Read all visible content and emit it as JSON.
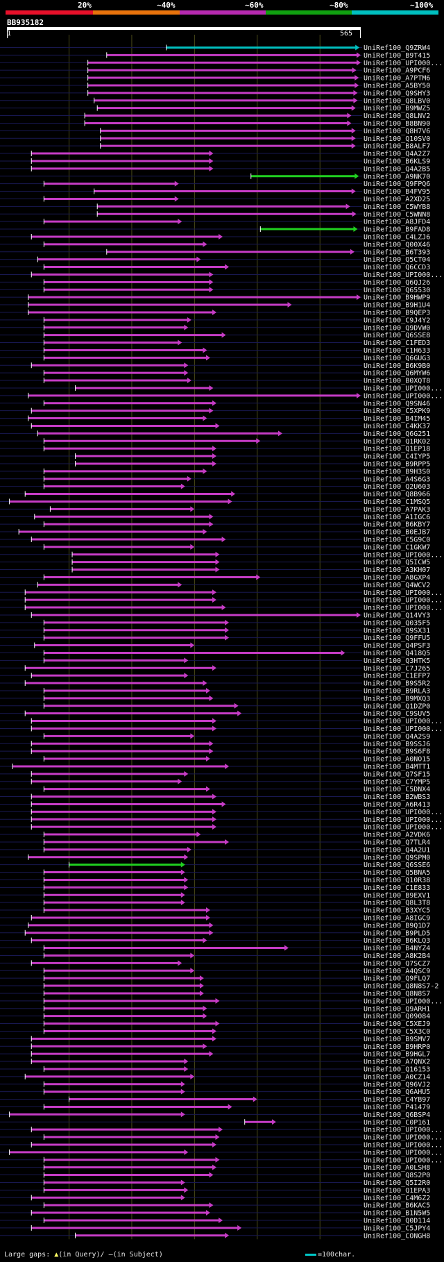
{
  "header": {
    "percent_labels": [
      "20%",
      "~40%",
      "~60%",
      "~80%",
      "~100%"
    ],
    "identity_colors": [
      "#e8102a",
      "#e8730c",
      "#b62ab0",
      "#10a010",
      "#00c0c0"
    ]
  },
  "query": {
    "name": "BB935182",
    "start": "1",
    "end": "565",
    "length": 565
  },
  "colors": {
    "purple": "#c63cc6",
    "green": "#20d020",
    "cyan": "#00c0c0",
    "white": "#ffffff",
    "gap": "#ffff66",
    "grid": "#4a4a1a",
    "row_rule": "#181850"
  },
  "hits": [
    {
      "name": "UniRef100_Q9ZRW4",
      "start": 255,
      "end": 563,
      "color": "cyan"
    },
    {
      "name": "UniRef100_B9T415",
      "start": 160,
      "end": 565,
      "color": "purple"
    },
    {
      "name": "UniRef100_UPI000...",
      "start": 130,
      "end": 565,
      "color": "purple"
    },
    {
      "name": "UniRef100_A9PCF6",
      "start": 130,
      "end": 558,
      "color": "purple"
    },
    {
      "name": "UniRef100_A7PTM6",
      "start": 130,
      "end": 562,
      "color": "purple"
    },
    {
      "name": "UniRef100_A5BY50",
      "start": 130,
      "end": 562,
      "color": "purple"
    },
    {
      "name": "UniRef100_Q9SHY3",
      "start": 130,
      "end": 560,
      "color": "purple"
    },
    {
      "name": "UniRef100_Q8LBV0",
      "start": 140,
      "end": 560,
      "color": "purple"
    },
    {
      "name": "UniRef100_B9MWZ5",
      "start": 145,
      "end": 557,
      "color": "purple"
    },
    {
      "name": "UniRef100_Q8LNV2",
      "start": 125,
      "end": 550,
      "color": "purple"
    },
    {
      "name": "UniRef100_B8BN90",
      "start": 125,
      "end": 550,
      "color": "purple"
    },
    {
      "name": "UniRef100_Q8H7V6",
      "start": 150,
      "end": 557,
      "color": "purple"
    },
    {
      "name": "UniRef100_Q10SV0",
      "start": 150,
      "end": 557,
      "color": "purple"
    },
    {
      "name": "UniRef100_B8ALF7",
      "start": 150,
      "end": 557,
      "color": "purple"
    },
    {
      "name": "UniRef100_Q4A2Z7",
      "start": 40,
      "end": 330,
      "color": "purple"
    },
    {
      "name": "UniRef100_B6KLS9",
      "start": 40,
      "end": 330,
      "color": "purple"
    },
    {
      "name": "UniRef100_Q4A2B5",
      "start": 40,
      "end": 330,
      "color": "purple"
    },
    {
      "name": "UniRef100_A9NK70",
      "start": 390,
      "end": 562,
      "color": "green"
    },
    {
      "name": "UniRef100_Q9FPQ6",
      "start": 60,
      "end": 275,
      "color": "purple"
    },
    {
      "name": "UniRef100_B4FV95",
      "start": 140,
      "end": 557,
      "color": "purple"
    },
    {
      "name": "UniRef100_A2XD25",
      "start": 60,
      "end": 275,
      "color": "purple"
    },
    {
      "name": "UniRef100_C5WYB8",
      "start": 145,
      "end": 548,
      "color": "purple"
    },
    {
      "name": "UniRef100_C5WNN8",
      "start": 145,
      "end": 558,
      "color": "purple"
    },
    {
      "name": "UniRef100_A8JFD4",
      "start": 60,
      "end": 280,
      "color": "purple"
    },
    {
      "name": "UniRef100_B9FAD8",
      "start": 405,
      "end": 560,
      "color": "green"
    },
    {
      "name": "UniRef100_C4LZJ6",
      "start": 40,
      "end": 345,
      "color": "purple"
    },
    {
      "name": "UniRef100_Q00X46",
      "start": 60,
      "end": 320,
      "color": "purple"
    },
    {
      "name": "UniRef100_B6T393",
      "start": 160,
      "end": 555,
      "color": "purple"
    },
    {
      "name": "UniRef100_Q5CT04",
      "start": 50,
      "end": 310,
      "color": "purple"
    },
    {
      "name": "UniRef100_Q6CCD3",
      "start": 60,
      "end": 355,
      "color": "purple"
    },
    {
      "name": "UniRef100_UPI000...",
      "start": 40,
      "end": 330,
      "color": "purple"
    },
    {
      "name": "UniRef100_Q6QJ26",
      "start": 60,
      "end": 330,
      "color": "purple"
    },
    {
      "name": "UniRef100_Q65530",
      "start": 60,
      "end": 330,
      "color": "purple"
    },
    {
      "name": "UniRef100_B9HWP9",
      "start": 35,
      "end": 565,
      "color": "purple"
    },
    {
      "name": "UniRef100_B9H1U4",
      "start": 35,
      "end": 455,
      "color": "purple"
    },
    {
      "name": "UniRef100_B9QEP3",
      "start": 35,
      "end": 335,
      "color": "purple"
    },
    {
      "name": "UniRef100_C9J4Y2",
      "start": 60,
      "end": 295,
      "color": "purple"
    },
    {
      "name": "UniRef100_Q9DVW0",
      "start": 60,
      "end": 290,
      "color": "purple"
    },
    {
      "name": "UniRef100_Q6SSE8",
      "start": 60,
      "end": 350,
      "color": "purple"
    },
    {
      "name": "UniRef100_C1FED3",
      "start": 60,
      "end": 280,
      "color": "purple"
    },
    {
      "name": "UniRef100_C1H633",
      "start": 60,
      "end": 320,
      "color": "purple"
    },
    {
      "name": "UniRef100_Q6GUG3",
      "start": 60,
      "end": 325,
      "color": "purple"
    },
    {
      "name": "UniRef100_B6K9B0",
      "start": 40,
      "end": 290,
      "color": "purple"
    },
    {
      "name": "UniRef100_Q6MYW6",
      "start": 60,
      "end": 290,
      "color": "purple"
    },
    {
      "name": "UniRef100_B0XQT8",
      "start": 60,
      "end": 295,
      "color": "purple"
    },
    {
      "name": "UniRef100_UPI000...",
      "start": 110,
      "end": 330,
      "color": "purple"
    },
    {
      "name": "UniRef100_UPI000...",
      "start": 35,
      "end": 565,
      "color": "purple"
    },
    {
      "name": "UniRef100_Q9SN46",
      "start": 60,
      "end": 335,
      "color": "purple"
    },
    {
      "name": "UniRef100_C5XPK9",
      "start": 40,
      "end": 330,
      "color": "purple"
    },
    {
      "name": "UniRef100_B4IM45",
      "start": 35,
      "end": 320,
      "color": "purple"
    },
    {
      "name": "UniRef100_C4KK37",
      "start": 40,
      "end": 340,
      "color": "purple"
    },
    {
      "name": "UniRef100_Q6G251",
      "start": 50,
      "end": 440,
      "color": "purple"
    },
    {
      "name": "UniRef100_Q1RK02",
      "start": 60,
      "end": 405,
      "color": "purple"
    },
    {
      "name": "UniRef100_Q1EP18",
      "start": 60,
      "end": 335,
      "color": "purple"
    },
    {
      "name": "UniRef100_C4IYP5",
      "start": 110,
      "end": 335,
      "color": "purple"
    },
    {
      "name": "UniRef100_B9RPP5",
      "start": 110,
      "end": 335,
      "color": "purple"
    },
    {
      "name": "UniRef100_B9H3S0",
      "start": 60,
      "end": 320,
      "color": "purple"
    },
    {
      "name": "UniRef100_A4S6G3",
      "start": 60,
      "end": 295,
      "color": "purple"
    },
    {
      "name": "UniRef100_Q2U603",
      "start": 60,
      "end": 285,
      "color": "purple"
    },
    {
      "name": "UniRef100_Q8B966",
      "start": 30,
      "end": 365,
      "color": "purple"
    },
    {
      "name": "UniRef100_C1MSQ5",
      "start": 5,
      "end": 360,
      "color": "purple"
    },
    {
      "name": "UniRef100_A7PAK3",
      "start": 70,
      "end": 300,
      "color": "purple"
    },
    {
      "name": "UniRef100_A1IGC6",
      "start": 45,
      "end": 330,
      "color": "purple"
    },
    {
      "name": "UniRef100_B6KBY7",
      "start": 60,
      "end": 330,
      "color": "purple"
    },
    {
      "name": "UniRef100_B0EJB7",
      "start": 20,
      "end": 320,
      "color": "purple"
    },
    {
      "name": "UniRef100_C5G9C0",
      "start": 40,
      "end": 350,
      "color": "purple"
    },
    {
      "name": "UniRef100_C1GKW7",
      "start": 60,
      "end": 300,
      "color": "purple"
    },
    {
      "name": "UniRef100_UPI000...",
      "start": 105,
      "end": 340,
      "color": "purple"
    },
    {
      "name": "UniRef100_Q5ICW5",
      "start": 105,
      "end": 340,
      "color": "purple"
    },
    {
      "name": "UniRef100_A3KH07",
      "start": 105,
      "end": 340,
      "color": "purple"
    },
    {
      "name": "UniRef100_A8GXP4",
      "start": 60,
      "end": 405,
      "color": "purple"
    },
    {
      "name": "UniRef100_Q4WCV2",
      "start": 50,
      "end": 280,
      "color": "purple"
    },
    {
      "name": "UniRef100_UPI000...",
      "start": 30,
      "end": 335,
      "color": "purple"
    },
    {
      "name": "UniRef100_UPI000...",
      "start": 30,
      "end": 335,
      "color": "purple"
    },
    {
      "name": "UniRef100_UPI000...",
      "start": 30,
      "end": 350,
      "color": "purple"
    },
    {
      "name": "UniRef100_Q14VY3",
      "start": 40,
      "end": 565,
      "color": "purple"
    },
    {
      "name": "UniRef100_Q035F5",
      "start": 60,
      "end": 355,
      "color": "purple"
    },
    {
      "name": "UniRef100_Q9SX31",
      "start": 60,
      "end": 355,
      "color": "purple"
    },
    {
      "name": "UniRef100_Q9FFU5",
      "start": 60,
      "end": 355,
      "color": "purple"
    },
    {
      "name": "UniRef100_Q4PSF3",
      "start": 45,
      "end": 300,
      "color": "purple"
    },
    {
      "name": "UniRef100_Q418Q5",
      "start": 60,
      "end": 540,
      "color": "purple"
    },
    {
      "name": "UniRef100_Q3HTK5",
      "start": 60,
      "end": 290,
      "color": "purple"
    },
    {
      "name": "UniRef100_C7J265",
      "start": 30,
      "end": 335,
      "color": "purple"
    },
    {
      "name": "UniRef100_C1EFP7",
      "start": 40,
      "end": 290,
      "color": "purple"
    },
    {
      "name": "UniRef100_B9S5R2",
      "start": 30,
      "end": 320,
      "color": "purple"
    },
    {
      "name": "UniRef100_B9RLA3",
      "start": 60,
      "end": 325,
      "color": "purple"
    },
    {
      "name": "UniRef100_B9MXQ3",
      "start": 60,
      "end": 330,
      "color": "purple"
    },
    {
      "name": "UniRef100_Q1DZP0",
      "start": 60,
      "end": 370,
      "color": "purple"
    },
    {
      "name": "UniRef100_C9SUV5",
      "start": 30,
      "end": 375,
      "color": "purple"
    },
    {
      "name": "UniRef100_UPI000...",
      "start": 40,
      "end": 335,
      "color": "purple"
    },
    {
      "name": "UniRef100_UPI000...",
      "start": 40,
      "end": 335,
      "color": "purple"
    },
    {
      "name": "UniRef100_Q4A2S9",
      "start": 60,
      "end": 300,
      "color": "purple"
    },
    {
      "name": "UniRef100_B9SSJ6",
      "start": 40,
      "end": 330,
      "color": "purple"
    },
    {
      "name": "UniRef100_B9S6F8",
      "start": 40,
      "end": 330,
      "color": "purple"
    },
    {
      "name": "UniRef100_A0NO15",
      "start": 60,
      "end": 325,
      "color": "purple"
    },
    {
      "name": "UniRef100_B4MTT1",
      "start": 10,
      "end": 355,
      "color": "purple"
    },
    {
      "name": "UniRef100_Q7SF15",
      "start": 40,
      "end": 290,
      "color": "purple"
    },
    {
      "name": "UniRef100_C7YMP5",
      "start": 40,
      "end": 280,
      "color": "purple"
    },
    {
      "name": "UniRef100_C5DNX4",
      "start": 60,
      "end": 325,
      "color": "purple"
    },
    {
      "name": "UniRef100_B2WBS3",
      "start": 40,
      "end": 335,
      "color": "purple"
    },
    {
      "name": "UniRef100_A6R413",
      "start": 40,
      "end": 350,
      "color": "purple"
    },
    {
      "name": "UniRef100_UPI000...",
      "start": 40,
      "end": 335,
      "color": "purple"
    },
    {
      "name": "UniRef100_UPI000...",
      "start": 40,
      "end": 335,
      "color": "purple"
    },
    {
      "name": "UniRef100_UPI000...",
      "start": 40,
      "end": 335,
      "color": "purple"
    },
    {
      "name": "UniRef100_A2VDK6",
      "start": 60,
      "end": 310,
      "color": "purple"
    },
    {
      "name": "UniRef100_Q7TLR4",
      "start": 60,
      "end": 355,
      "color": "purple"
    },
    {
      "name": "UniRef100_Q4A2U1",
      "start": 60,
      "end": 295,
      "color": "purple"
    },
    {
      "name": "UniRef100_Q9SPM0",
      "start": 35,
      "end": 290,
      "color": "purple"
    },
    {
      "name": "UniRef100_Q6SSE6",
      "start": 100,
      "end": 285,
      "color": "green"
    },
    {
      "name": "UniRef100_Q5BNA5",
      "start": 60,
      "end": 285,
      "color": "purple"
    },
    {
      "name": "UniRef100_Q10R38",
      "start": 60,
      "end": 290,
      "color": "purple"
    },
    {
      "name": "UniRef100_C1E833",
      "start": 60,
      "end": 290,
      "color": "purple"
    },
    {
      "name": "UniRef100_B9EXV1",
      "start": 60,
      "end": 285,
      "color": "purple"
    },
    {
      "name": "UniRef100_Q8L3T8",
      "start": 60,
      "end": 285,
      "color": "purple"
    },
    {
      "name": "UniRef100_B3XYC5",
      "start": 60,
      "end": 325,
      "color": "purple"
    },
    {
      "name": "UniRef100_A8IGC9",
      "start": 40,
      "end": 325,
      "color": "purple"
    },
    {
      "name": "UniRef100_B9Q1D7",
      "start": 35,
      "end": 330,
      "color": "purple"
    },
    {
      "name": "UniRef100_B9PLD5",
      "start": 30,
      "end": 330,
      "color": "purple"
    },
    {
      "name": "UniRef100_B6KLQ3",
      "start": 40,
      "end": 320,
      "color": "purple"
    },
    {
      "name": "UniRef100_B4NYZ4",
      "start": 60,
      "end": 450,
      "color": "purple"
    },
    {
      "name": "UniRef100_A8K2B4",
      "start": 60,
      "end": 300,
      "color": "purple"
    },
    {
      "name": "UniRef100_Q7SCZ7",
      "start": 40,
      "end": 280,
      "color": "purple"
    },
    {
      "name": "UniRef100_A4QSC9",
      "start": 60,
      "end": 300,
      "color": "purple"
    },
    {
      "name": "UniRef100_Q9FLQ7",
      "start": 60,
      "end": 315,
      "color": "purple"
    },
    {
      "name": "UniRef100_Q8N8S7-2",
      "start": 60,
      "end": 315,
      "color": "purple"
    },
    {
      "name": "UniRef100_Q8N8S7",
      "start": 60,
      "end": 315,
      "color": "purple"
    },
    {
      "name": "UniRef100_UPI000...",
      "start": 60,
      "end": 340,
      "color": "purple"
    },
    {
      "name": "UniRef100_Q9ARH1",
      "start": 60,
      "end": 320,
      "color": "purple"
    },
    {
      "name": "UniRef100_Q09084",
      "start": 60,
      "end": 320,
      "color": "purple"
    },
    {
      "name": "UniRef100_C5XEJ9",
      "start": 60,
      "end": 340,
      "color": "purple"
    },
    {
      "name": "UniRef100_C5X3C0",
      "start": 60,
      "end": 335,
      "color": "purple"
    },
    {
      "name": "UniRef100_B9SMV7",
      "start": 40,
      "end": 335,
      "color": "purple"
    },
    {
      "name": "UniRef100_B9HRP0",
      "start": 40,
      "end": 320,
      "color": "purple"
    },
    {
      "name": "UniRef100_B9HGL7",
      "start": 40,
      "end": 330,
      "color": "purple"
    },
    {
      "name": "UniRef100_A7QNX2",
      "start": 40,
      "end": 290,
      "color": "purple"
    },
    {
      "name": "UniRef100_Q16153",
      "start": 60,
      "end": 290,
      "color": "purple"
    },
    {
      "name": "UniRef100_A0CZ14",
      "start": 30,
      "end": 300,
      "color": "purple"
    },
    {
      "name": "UniRef100_Q96VJ2",
      "start": 60,
      "end": 285,
      "color": "purple"
    },
    {
      "name": "UniRef100_Q6AHU5",
      "start": 60,
      "end": 285,
      "color": "purple"
    },
    {
      "name": "UniRef100_C4YB97",
      "start": 100,
      "end": 400,
      "color": "purple"
    },
    {
      "name": "UniRef100_P41479",
      "start": 60,
      "end": 360,
      "color": "purple"
    },
    {
      "name": "UniRef100_Q6BSP4",
      "start": 5,
      "end": 285,
      "color": "purple"
    },
    {
      "name": "UniRef100_C0P161",
      "start": 380,
      "end": 430,
      "color": "purple"
    },
    {
      "name": "UniRef100_UPI000...",
      "start": 40,
      "end": 345,
      "color": "purple"
    },
    {
      "name": "UniRef100_UPI000...",
      "start": 60,
      "end": 340,
      "color": "purple"
    },
    {
      "name": "UniRef100_UPI000...",
      "start": 40,
      "end": 335,
      "color": "purple"
    },
    {
      "name": "UniRef100_UPI000...",
      "start": 5,
      "end": 290,
      "color": "purple"
    },
    {
      "name": "UniRef100_UPI000...",
      "start": 60,
      "end": 340,
      "color": "purple"
    },
    {
      "name": "UniRef100_A0LSH8",
      "start": 60,
      "end": 335,
      "color": "purple"
    },
    {
      "name": "UniRef100_Q8S2P0",
      "start": 60,
      "end": 330,
      "color": "purple"
    },
    {
      "name": "UniRef100_Q5I2R0",
      "start": 60,
      "end": 285,
      "color": "purple"
    },
    {
      "name": "UniRef100_Q1EPA3",
      "start": 60,
      "end": 290,
      "color": "purple"
    },
    {
      "name": "UniRef100_C4M6Z2",
      "start": 40,
      "end": 285,
      "color": "purple"
    },
    {
      "name": "UniRef100_B6KAC5",
      "start": 60,
      "end": 330,
      "color": "purple"
    },
    {
      "name": "UniRef100_B1N5W5",
      "start": 40,
      "end": 325,
      "color": "purple"
    },
    {
      "name": "UniRef100_Q0D114",
      "start": 60,
      "end": 345,
      "color": "purple"
    },
    {
      "name": "UniRef100_C5JPY4",
      "start": 40,
      "end": 375,
      "color": "purple"
    },
    {
      "name": "UniRef100_CONGH8",
      "start": 110,
      "end": 355,
      "color": "purple"
    }
  ],
  "legend": {
    "gaps_label": "Large gaps:",
    "in_query_symbol": "▲",
    "in_query_text": "(in Query)/",
    "in_subject_symbol": "–",
    "in_subject_text": "(in Subject)",
    "scale_text": "=100char."
  }
}
